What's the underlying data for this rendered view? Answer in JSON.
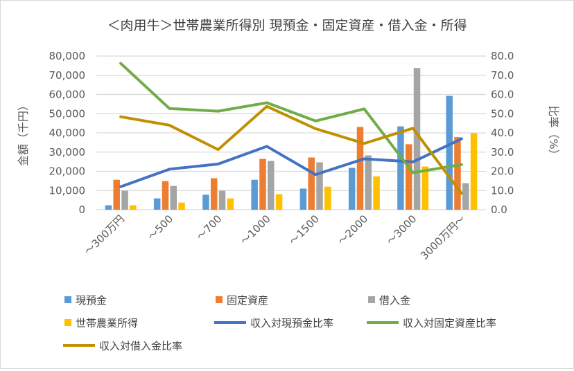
{
  "chart_data": {
    "type": "bar+line",
    "title": "＜肉用牛＞世帯農業所得別 現預金・固定資産・借入金・所得",
    "ylabel": "金額（千円）",
    "y2label": "比率（%）",
    "ylim": [
      0,
      80000
    ],
    "y2lim": [
      0,
      80
    ],
    "yticks": [
      "0",
      "10,000",
      "20,000",
      "30,000",
      "40,000",
      "50,000",
      "60,000",
      "70,000",
      "80,000"
    ],
    "y2ticks": [
      "0.0",
      "10.0",
      "20.0",
      "30.0",
      "40.0",
      "50.0",
      "60.0",
      "70.0",
      "80.0"
    ],
    "categories": [
      "～300万円",
      "～500",
      "～700",
      "～1000",
      "～1500",
      "～2000",
      "～3000",
      "3000万円～"
    ],
    "grid": true,
    "legend_position": "bottom",
    "bar_series": [
      {
        "name": "現預金",
        "color": "#5b9bd5",
        "values": [
          2300,
          5900,
          7800,
          15600,
          11000,
          21800,
          43400,
          59300
        ]
      },
      {
        "name": "固定資産",
        "color": "#ed7d31",
        "values": [
          15600,
          14900,
          16400,
          26500,
          27200,
          43100,
          34100,
          37800
        ]
      },
      {
        "name": "借入金",
        "color": "#a5a5a5",
        "values": [
          9900,
          12400,
          9900,
          25400,
          24700,
          28300,
          73800,
          13800
        ]
      },
      {
        "name": "世帯農業所得",
        "color": "#ffc000",
        "values": [
          2300,
          3700,
          5900,
          8100,
          12000,
          17400,
          22500,
          39800
        ]
      }
    ],
    "line_series": [
      {
        "name": "収入対現預金比率",
        "color": "#4472c4",
        "values": [
          12.0,
          21.1,
          23.8,
          33.0,
          18.3,
          26.5,
          24.9,
          36.9
        ]
      },
      {
        "name": "収入対固定資産比率",
        "color": "#70ad47",
        "values": [
          76.2,
          52.7,
          51.3,
          55.7,
          46.2,
          52.5,
          19.3,
          23.5
        ]
      },
      {
        "name": "収入対借入金比率",
        "color": "#bf9000",
        "values": [
          48.4,
          44.0,
          31.3,
          53.8,
          42.2,
          34.5,
          42.4,
          8.5
        ]
      }
    ]
  }
}
